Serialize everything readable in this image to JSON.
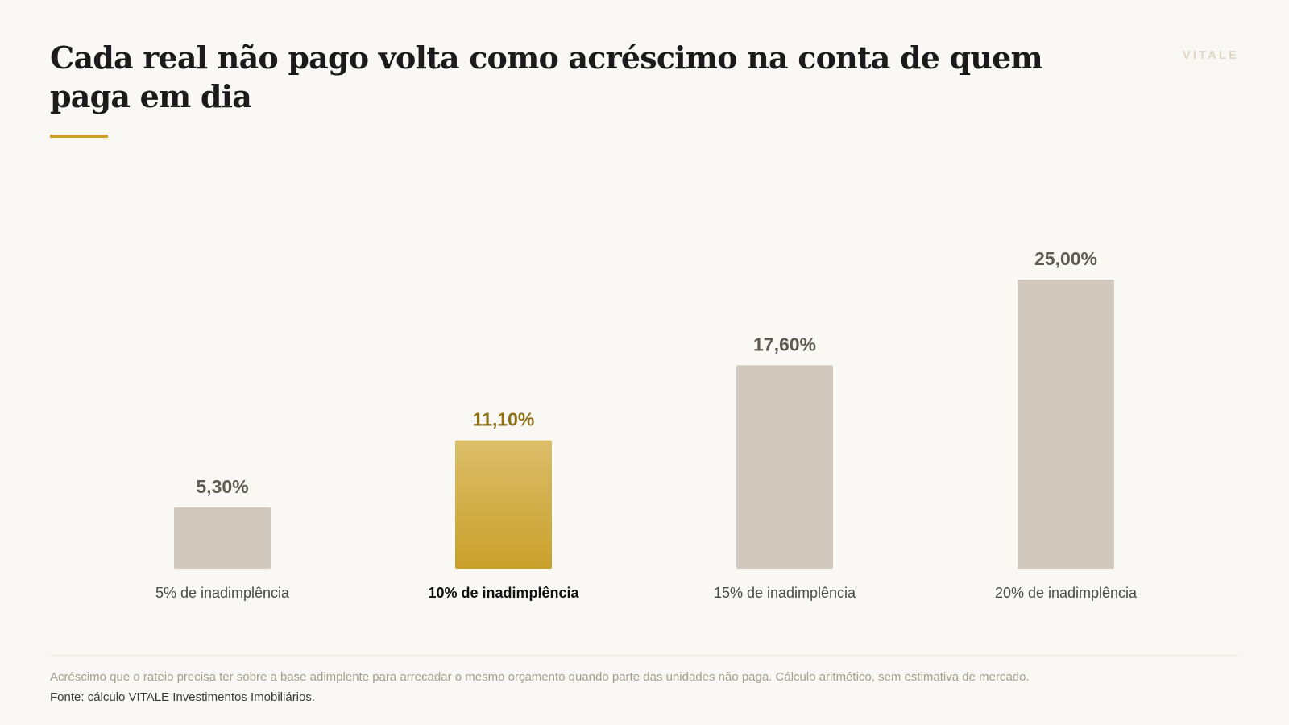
{
  "header": {
    "title": "Cada real não pago volta como acréscimo na conta de quem paga em dia",
    "brand": "VITALE"
  },
  "colors": {
    "accent": "#c9a02a",
    "accent_light": "#dcbe6a",
    "bar": "#d1c9bd",
    "value_label": "#5f5a52",
    "highlight_value": "#8e6f16",
    "category_label": "#4a4a4a",
    "highlight_category": "#111111"
  },
  "chart_data": {
    "type": "bar",
    "categories": [
      "5% de inadimplência",
      "10% de inadimplência",
      "15% de inadimplência",
      "20% de inadimplência"
    ],
    "values": [
      5.3,
      11.1,
      17.6,
      25.0
    ],
    "value_labels": [
      "5,30%",
      "11,10%",
      "17,60%",
      "25,00%"
    ],
    "highlight_index": 1,
    "ylim": [
      0,
      25
    ],
    "grid": false,
    "title": "Cada real não pago volta como acréscimo na conta de quem paga em dia",
    "xlabel": "",
    "ylabel": ""
  },
  "footer": {
    "note": "Acréscimo que o rateio precisa ter sobre a base adimplente para arrecadar o mesmo orçamento quando parte das unidades não paga. Cálculo aritmético, sem estimativa de mercado.",
    "source": "Fonte: cálculo VITALE Investimentos Imobiliários."
  }
}
